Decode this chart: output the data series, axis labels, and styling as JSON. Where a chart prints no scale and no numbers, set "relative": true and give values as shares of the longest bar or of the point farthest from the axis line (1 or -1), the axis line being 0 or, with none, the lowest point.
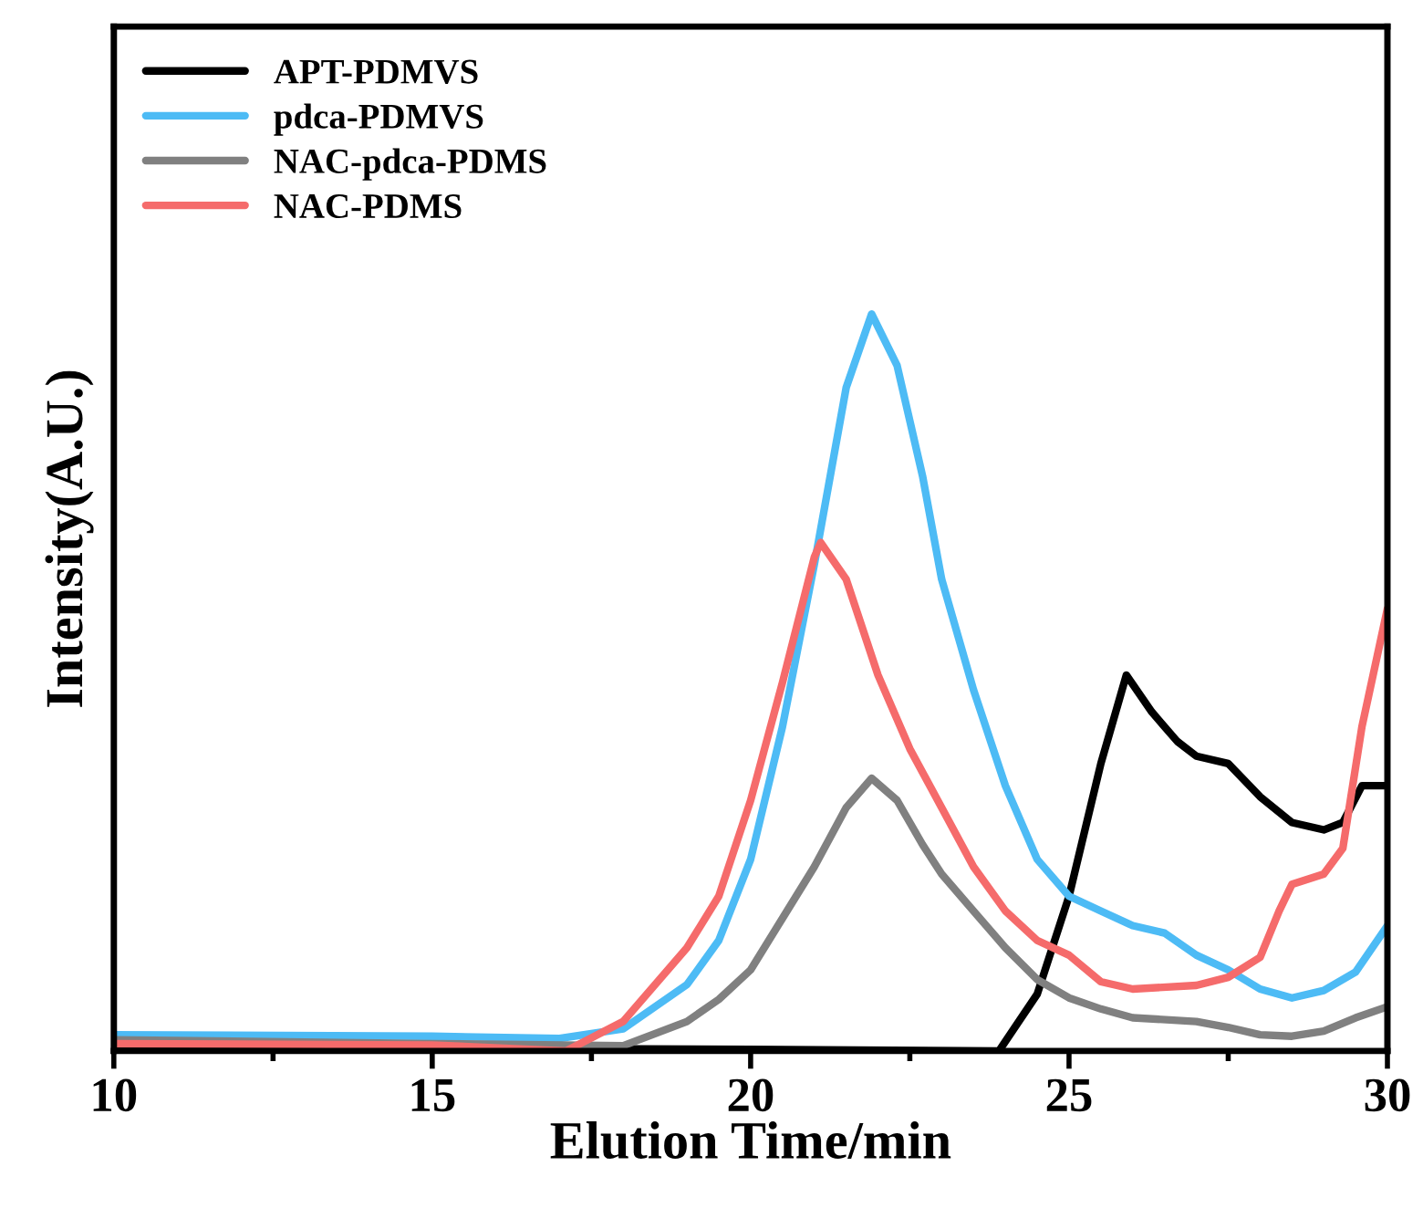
{
  "chart_data": {
    "type": "line",
    "relative": true,
    "xlabel": "Elution Time/min",
    "ylabel": "Intensity(A.U.)",
    "xlim": [
      10,
      30
    ],
    "xticks": [
      10,
      15,
      20,
      25,
      30
    ],
    "legend": "top left",
    "grid": false,
    "tick_labels": "x",
    "series": [
      {
        "name": "APT-PDMVS",
        "color": "#000000",
        "x": [
          10,
          15,
          20,
          23.9,
          24.5,
          25,
          25.5,
          25.9,
          26.3,
          26.7,
          27,
          27.5,
          28,
          28.5,
          29,
          29.3,
          29.6,
          29.8,
          30
        ],
        "values": [
          0.005,
          0.004,
          0.002,
          0,
          0.077,
          0.21,
          0.39,
          0.51,
          0.46,
          0.42,
          0.4,
          0.39,
          0.345,
          0.31,
          0.3,
          0.31,
          0.36,
          0.36,
          0.36
        ]
      },
      {
        "name": "pdca-PDMVS",
        "color": "#4dbbf5",
        "x": [
          10,
          15,
          17,
          18,
          19,
          19.5,
          20,
          20.5,
          21,
          21.5,
          21.9,
          22.3,
          22.7,
          23,
          23.5,
          24,
          24.5,
          25,
          25.5,
          26,
          26.5,
          27,
          27.5,
          28,
          28.5,
          29,
          29.5,
          30
        ],
        "values": [
          0.022,
          0.02,
          0.017,
          0.03,
          0.09,
          0.15,
          0.26,
          0.44,
          0.66,
          0.9,
          1.0,
          0.93,
          0.78,
          0.64,
          0.49,
          0.36,
          0.26,
          0.21,
          0.19,
          0.17,
          0.16,
          0.13,
          0.11,
          0.084,
          0.072,
          0.082,
          0.107,
          0.17
        ]
      },
      {
        "name": "NAC-pdca-PDMS",
        "color": "#808080",
        "x": [
          10,
          15,
          18,
          19,
          19.5,
          20,
          20.5,
          21,
          21.5,
          21.9,
          22.3,
          22.7,
          23,
          23.5,
          24,
          24.5,
          25,
          25.5,
          26,
          27,
          27.5,
          28,
          28.5,
          29,
          29.5,
          30
        ],
        "values": [
          0.015,
          0.01,
          0.007,
          0.04,
          0.07,
          0.11,
          0.18,
          0.25,
          0.33,
          0.37,
          0.34,
          0.28,
          0.24,
          0.19,
          0.14,
          0.097,
          0.072,
          0.057,
          0.045,
          0.04,
          0.032,
          0.022,
          0.02,
          0.027,
          0.045,
          0.06
        ]
      },
      {
        "name": "NAC-PDMS",
        "color": "#f56b6b",
        "x": [
          10,
          15,
          17.1,
          18,
          19,
          19.5,
          20,
          20.5,
          21,
          21.1,
          21.5,
          22,
          22.5,
          23,
          23.5,
          24,
          24.5,
          25,
          25.5,
          26,
          27,
          27.5,
          28,
          28.3,
          28.5,
          29,
          29.3,
          29.6,
          30
        ],
        "values": [
          0.01,
          0.008,
          0,
          0.04,
          0.14,
          0.21,
          0.34,
          0.5,
          0.67,
          0.69,
          0.64,
          0.51,
          0.41,
          0.33,
          0.25,
          0.19,
          0.15,
          0.13,
          0.094,
          0.084,
          0.089,
          0.1,
          0.127,
          0.19,
          0.226,
          0.24,
          0.275,
          0.44,
          0.6
        ]
      }
    ]
  }
}
